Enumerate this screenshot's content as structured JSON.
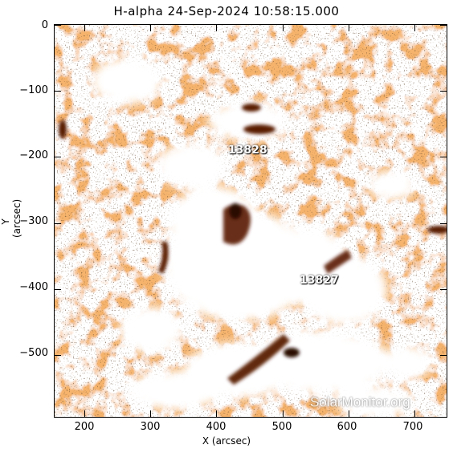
{
  "title": "H-alpha 24-Sep-2024 10:58:15.000",
  "x_axis": {
    "label": "X (arcsec)",
    "ticks": [
      "200",
      "300",
      "400",
      "500",
      "600",
      "700"
    ],
    "range": [
      155,
      750
    ]
  },
  "y_axis": {
    "label": "Y (arcsec)",
    "ticks": [
      "0",
      "−100",
      "−200",
      "−300",
      "−400",
      "−500"
    ],
    "range": [
      -595,
      0
    ]
  },
  "active_regions": [
    {
      "label": "13828",
      "x_arcsec": 440,
      "y_arcsec": -195
    },
    {
      "label": "13827",
      "x_arcsec": 565,
      "y_arcsec": -390
    }
  ],
  "watermark": "SolarMonitor.org",
  "colors": {
    "bright": "#ffffff",
    "chromosphere": "#e8772a",
    "filament": "#5a1a05",
    "background": "#ffffff"
  }
}
